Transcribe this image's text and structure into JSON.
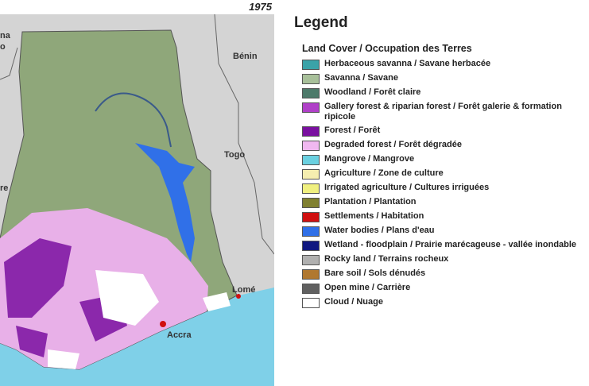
{
  "map": {
    "year": "1975",
    "labels": [
      "na",
      "o",
      "Bénin",
      "Togo",
      "re",
      "Lomé",
      "Accra"
    ]
  },
  "legend": {
    "title": "Legend",
    "subtitle": "Land Cover / Occupation des Terres",
    "items": [
      {
        "label": "Herbaceous savanna / Savane herbacée",
        "color": "#3aa3a8"
      },
      {
        "label": "Savanna / Savane",
        "color": "#a8c09a"
      },
      {
        "label": "Woodland / Forêt claire",
        "color": "#4d7a6a"
      },
      {
        "label": "Gallery forest & riparian forest / Forêt galerie & formation ripicole",
        "color": "#b040c8"
      },
      {
        "label": "Forest / Forêt",
        "color": "#7a10a0"
      },
      {
        "label": "Degraded forest / Forêt dégradée",
        "color": "#f0b8f0"
      },
      {
        "label": "Mangrove / Mangrove",
        "color": "#6ad0e0"
      },
      {
        "label": "Agriculture / Zone de culture",
        "color": "#f5eeb0"
      },
      {
        "label": "Irrigated agriculture / Cultures irriguées",
        "color": "#f0f080"
      },
      {
        "label": "Plantation / Plantation",
        "color": "#808030"
      },
      {
        "label": "Settlements / Habitation",
        "color": "#d01010"
      },
      {
        "label": "Water bodies / Plans d'eau",
        "color": "#3070e8"
      },
      {
        "label": "Wetland - floodplain / Prairie marécageuse - vallée inondable",
        "color": "#101880"
      },
      {
        "label": "Rocky land / Terrains rocheux",
        "color": "#b0b0b0"
      },
      {
        "label": "Bare soil / Sols dénudés",
        "color": "#b07830"
      },
      {
        "label": "Open mine / Carrière",
        "color": "#606060"
      },
      {
        "label": "Cloud / Nuage",
        "color": "#ffffff"
      }
    ]
  }
}
